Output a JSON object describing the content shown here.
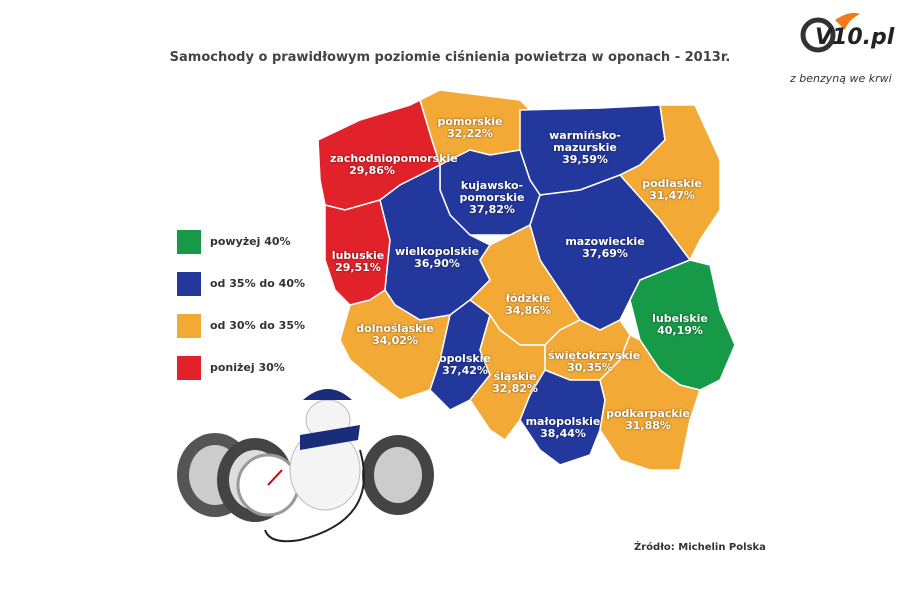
{
  "header": {
    "title": "Samochody o prawidłowym poziomie ciśnienia powietrza w oponach - 2013r.",
    "logo": "V10.pl",
    "slogan": "z benzyną we krwi"
  },
  "legend": [
    {
      "label": "powyżej 40%",
      "color": "#169a48"
    },
    {
      "label": "od 35% do 40%",
      "color": "#23389c"
    },
    {
      "label": "od 30% do 35%",
      "color": "#f2a935"
    },
    {
      "label": "poniżej 30%",
      "color": "#e2222b"
    }
  ],
  "regions": [
    {
      "name": "zachodniopomorskie",
      "value": "29,86%",
      "color": "#e2222b"
    },
    {
      "name": "lubuskie",
      "value": "29,51%",
      "color": "#e2222b"
    },
    {
      "name": "pomorskie",
      "value": "32,22%",
      "color": "#f2a935"
    },
    {
      "name": "warmińsko-mazurskie",
      "value": "39,59%",
      "color": "#23389c"
    },
    {
      "name": "podlaskie",
      "value": "31,47%",
      "color": "#f2a935"
    },
    {
      "name": "kujawsko-pomorskie",
      "value": "37,82%",
      "color": "#23389c"
    },
    {
      "name": "wielkopolskie",
      "value": "36,90%",
      "color": "#23389c"
    },
    {
      "name": "mazowieckie",
      "value": "37,69%",
      "color": "#23389c"
    },
    {
      "name": "łódzkie",
      "value": "34,86%",
      "color": "#f2a935"
    },
    {
      "name": "lubelskie",
      "value": "40,19%",
      "color": "#169a48"
    },
    {
      "name": "dolnośląskie",
      "value": "34,02%",
      "color": "#f2a935"
    },
    {
      "name": "opolskie",
      "value": "37,42%",
      "color": "#23389c"
    },
    {
      "name": "śląskie",
      "value": "32,82%",
      "color": "#f2a935"
    },
    {
      "name": "świętokrzyskie",
      "value": "30,35%",
      "color": "#f2a935"
    },
    {
      "name": "małopolskie",
      "value": "38,44%",
      "color": "#23389c"
    },
    {
      "name": "podkarpackie",
      "value": "31,88%",
      "color": "#f2a935"
    }
  ],
  "source": "Źródło: Michelin Polska"
}
